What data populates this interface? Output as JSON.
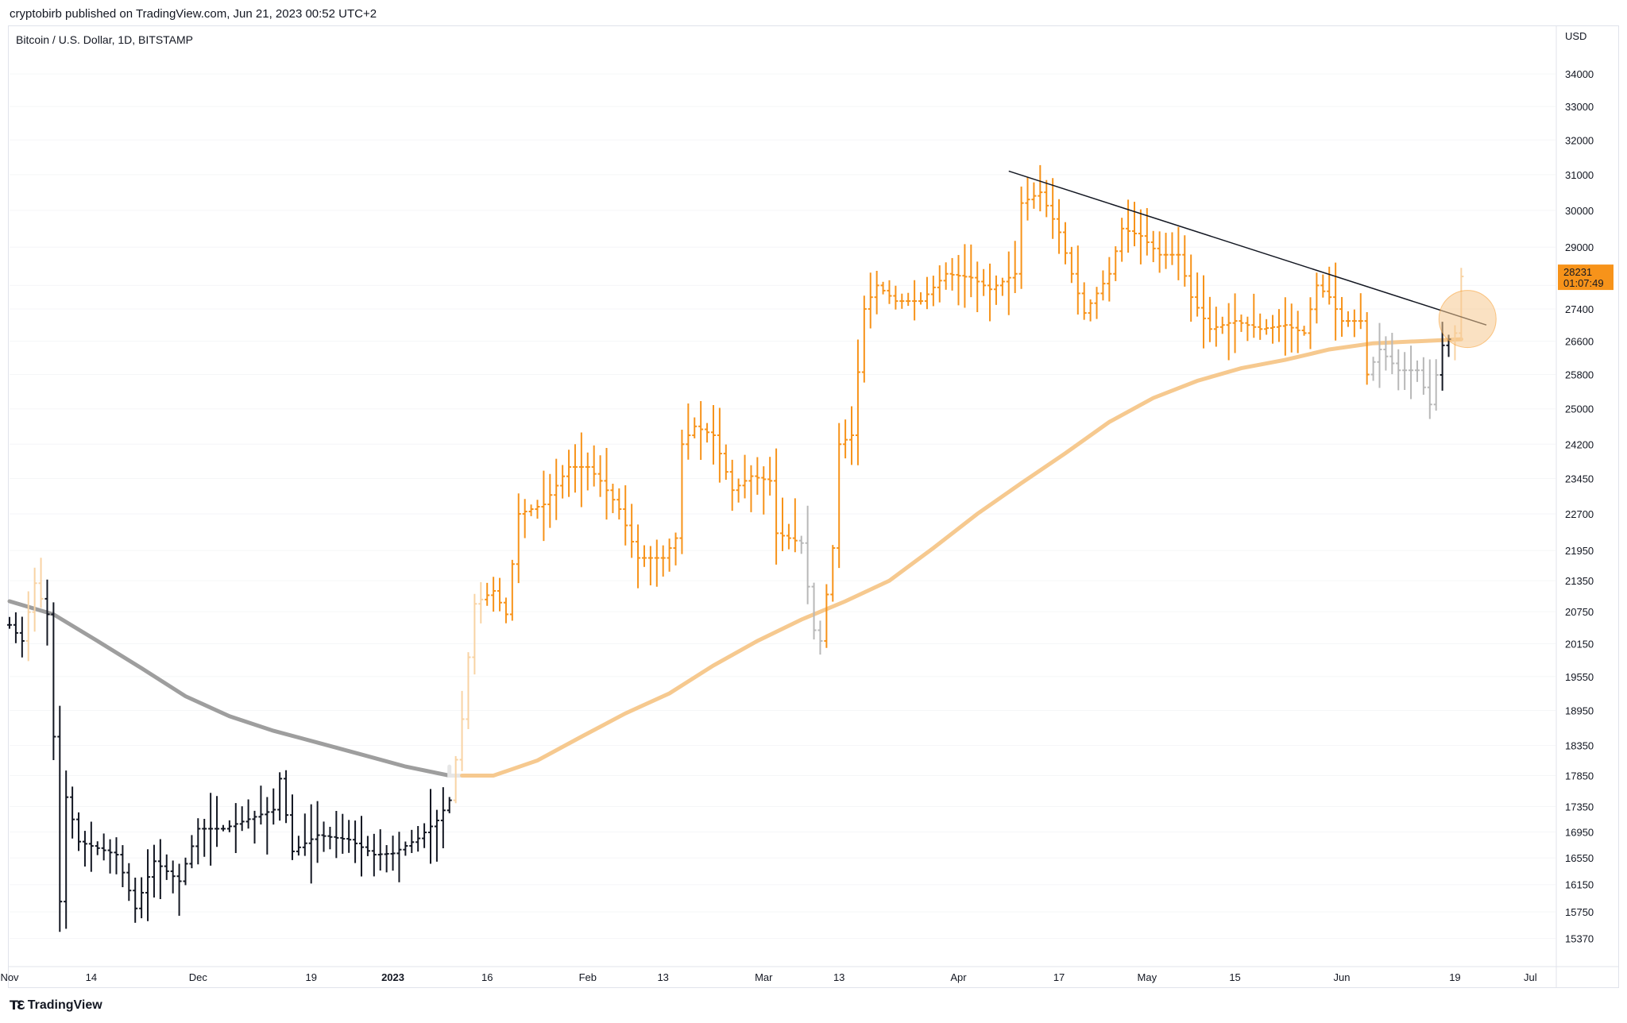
{
  "header": {
    "published_by": "cryptobirb published on TradingView.com, Jun 21, 2023 00:52 UTC+2"
  },
  "footer": {
    "logo_text": "TradingView",
    "logo_icon": "tradingview-logo-icon"
  },
  "colors": {
    "up_bar": "#f7931a",
    "down_bar_dark": "#131722",
    "faded_orange": "#f8d3a4",
    "faded_grey": "#b8b8b8",
    "ma_below": "#9e9e9e",
    "ma_above": "#f6c98f",
    "trendline": "#131722",
    "price_badge": "#f7931a",
    "highlight_circle": "#f6c98f"
  },
  "chart_data": {
    "type": "ohlc-bar",
    "title": "Bitcoin / U.S. Dollar, 1D, BITSTAMP",
    "currency_label": "USD",
    "y_scale": "log",
    "ylim": [
      15000,
      35500
    ],
    "y_ticks": [
      34000,
      33000,
      32000,
      31000,
      30000,
      29000,
      28000,
      27400,
      26600,
      25800,
      25000,
      24200,
      23450,
      22700,
      21950,
      21350,
      20750,
      20150,
      19550,
      18950,
      18350,
      17850,
      17350,
      16950,
      16550,
      16150,
      15750,
      15370
    ],
    "y_tick_labels": [
      "34000",
      "33000",
      "32000",
      "31000",
      "30000",
      "29000",
      "",
      "27400",
      "26600",
      "25800",
      "25000",
      "24200",
      "23450",
      "22700",
      "21950",
      "21350",
      "20750",
      "20150",
      "19550",
      "18950",
      "18350",
      "17850",
      "17350",
      "16950",
      "16550",
      "16150",
      "15750",
      "15370"
    ],
    "x_start": "2022-11-01",
    "x_end": "2023-07-05",
    "x_ticks": [
      {
        "date": "2022-11-01",
        "label": "Nov",
        "bold": false
      },
      {
        "date": "2022-11-14",
        "label": "14",
        "bold": false
      },
      {
        "date": "2022-12-01",
        "label": "Dec",
        "bold": false
      },
      {
        "date": "2022-12-19",
        "label": "19",
        "bold": false
      },
      {
        "date": "2023-01-01",
        "label": "2023",
        "bold": true
      },
      {
        "date": "2023-01-16",
        "label": "16",
        "bold": false
      },
      {
        "date": "2023-02-01",
        "label": "Feb",
        "bold": false
      },
      {
        "date": "2023-02-13",
        "label": "13",
        "bold": false
      },
      {
        "date": "2023-03-01",
        "label": "Mar",
        "bold": false
      },
      {
        "date": "2023-03-13",
        "label": "13",
        "bold": false
      },
      {
        "date": "2023-04-01",
        "label": "Apr",
        "bold": false
      },
      {
        "date": "2023-04-17",
        "label": "17",
        "bold": false
      },
      {
        "date": "2023-05-01",
        "label": "May",
        "bold": false
      },
      {
        "date": "2023-05-15",
        "label": "15",
        "bold": false
      },
      {
        "date": "2023-06-01",
        "label": "Jun",
        "bold": false
      },
      {
        "date": "2023-06-19",
        "label": "19",
        "bold": false
      },
      {
        "date": "2023-07-01",
        "label": "Jul",
        "bold": false
      }
    ],
    "close_path": [
      [
        "2022-11-01",
        20500
      ],
      [
        "2022-11-03",
        20200
      ],
      [
        "2022-11-05",
        21300
      ],
      [
        "2022-11-07",
        20700
      ],
      [
        "2022-11-08",
        18500
      ],
      [
        "2022-11-09",
        15900
      ],
      [
        "2022-11-10",
        17500
      ],
      [
        "2022-11-12",
        16800
      ],
      [
        "2022-11-15",
        16700
      ],
      [
        "2022-11-18",
        16600
      ],
      [
        "2022-11-21",
        15800
      ],
      [
        "2022-11-24",
        16500
      ],
      [
        "2022-11-28",
        16200
      ],
      [
        "2022-12-01",
        17000
      ],
      [
        "2022-12-05",
        17000
      ],
      [
        "2022-12-09",
        17150
      ],
      [
        "2022-12-13",
        17300
      ],
      [
        "2022-12-14",
        17800
      ],
      [
        "2022-12-16",
        16650
      ],
      [
        "2022-12-20",
        16900
      ],
      [
        "2022-12-25",
        16830
      ],
      [
        "2022-12-29",
        16600
      ],
      [
        "2023-01-01",
        16620
      ],
      [
        "2023-01-05",
        16850
      ],
      [
        "2023-01-08",
        17130
      ],
      [
        "2023-01-10",
        17450
      ],
      [
        "2023-01-12",
        18800
      ],
      [
        "2023-01-13",
        19900
      ],
      [
        "2023-01-14",
        20900
      ],
      [
        "2023-01-17",
        21150
      ],
      [
        "2023-01-19",
        20700
      ],
      [
        "2023-01-21",
        22700
      ],
      [
        "2023-01-25",
        22900
      ],
      [
        "2023-01-29",
        23700
      ],
      [
        "2023-02-01",
        23700
      ],
      [
        "2023-02-03",
        23400
      ],
      [
        "2023-02-06",
        22800
      ],
      [
        "2023-02-09",
        21800
      ],
      [
        "2023-02-13",
        21800
      ],
      [
        "2023-02-15",
        22200
      ],
      [
        "2023-02-16",
        24200
      ],
      [
        "2023-02-18",
        24600
      ],
      [
        "2023-02-21",
        24400
      ],
      [
        "2023-02-24",
        23200
      ],
      [
        "2023-02-27",
        23500
      ],
      [
        "2023-03-02",
        23400
      ],
      [
        "2023-03-03",
        22300
      ],
      [
        "2023-03-07",
        22100
      ],
      [
        "2023-03-09",
        20400
      ],
      [
        "2023-03-10",
        20200
      ],
      [
        "2023-03-12",
        22000
      ],
      [
        "2023-03-13",
        24200
      ],
      [
        "2023-03-15",
        24400
      ],
      [
        "2023-03-17",
        27400
      ],
      [
        "2023-03-19",
        28000
      ],
      [
        "2023-03-22",
        27600
      ],
      [
        "2023-03-26",
        27600
      ],
      [
        "2023-03-30",
        28300
      ],
      [
        "2023-04-03",
        28200
      ],
      [
        "2023-04-06",
        27900
      ],
      [
        "2023-04-10",
        28300
      ],
      [
        "2023-04-11",
        30200
      ],
      [
        "2023-04-14",
        30500
      ],
      [
        "2023-04-17",
        29400
      ],
      [
        "2023-04-19",
        28300
      ],
      [
        "2023-04-21",
        27300
      ],
      [
        "2023-04-25",
        28300
      ],
      [
        "2023-04-27",
        29500
      ],
      [
        "2023-04-30",
        29300
      ],
      [
        "2023-05-03",
        28800
      ],
      [
        "2023-05-06",
        28800
      ],
      [
        "2023-05-08",
        27700
      ],
      [
        "2023-05-11",
        26900
      ],
      [
        "2023-05-15",
        27100
      ],
      [
        "2023-05-19",
        26900
      ],
      [
        "2023-05-23",
        27000
      ],
      [
        "2023-05-26",
        26800
      ],
      [
        "2023-05-28",
        28000
      ],
      [
        "2023-05-30",
        27700
      ],
      [
        "2023-06-01",
        27100
      ],
      [
        "2023-06-04",
        27100
      ],
      [
        "2023-06-05",
        25800
      ],
      [
        "2023-06-07",
        26400
      ],
      [
        "2023-06-10",
        25900
      ],
      [
        "2023-06-13",
        25900
      ],
      [
        "2023-06-15",
        25100
      ],
      [
        "2023-06-17",
        26500
      ],
      [
        "2023-06-19",
        26800
      ],
      [
        "2023-06-20",
        28231
      ]
    ],
    "ma_path": [
      [
        "2022-11-01",
        20950
      ],
      [
        "2022-11-08",
        20700
      ],
      [
        "2022-11-15",
        20200
      ],
      [
        "2022-11-22",
        19700
      ],
      [
        "2022-11-29",
        19200
      ],
      [
        "2022-12-06",
        18850
      ],
      [
        "2022-12-13",
        18600
      ],
      [
        "2022-12-20",
        18400
      ],
      [
        "2022-12-27",
        18200
      ],
      [
        "2023-01-03",
        18000
      ],
      [
        "2023-01-10",
        17850
      ],
      [
        "2023-01-17",
        17850
      ],
      [
        "2023-01-24",
        18100
      ],
      [
        "2023-01-31",
        18500
      ],
      [
        "2023-02-07",
        18900
      ],
      [
        "2023-02-14",
        19250
      ],
      [
        "2023-02-21",
        19750
      ],
      [
        "2023-02-28",
        20200
      ],
      [
        "2023-03-07",
        20600
      ],
      [
        "2023-03-14",
        20950
      ],
      [
        "2023-03-21",
        21350
      ],
      [
        "2023-03-28",
        22000
      ],
      [
        "2023-04-04",
        22700
      ],
      [
        "2023-04-11",
        23350
      ],
      [
        "2023-04-18",
        24000
      ],
      [
        "2023-04-25",
        24700
      ],
      [
        "2023-05-02",
        25250
      ],
      [
        "2023-05-09",
        25650
      ],
      [
        "2023-05-16",
        25950
      ],
      [
        "2023-05-23",
        26150
      ],
      [
        "2023-05-30",
        26400
      ],
      [
        "2023-06-06",
        26550
      ],
      [
        "2023-06-13",
        26600
      ],
      [
        "2023-06-20",
        26650
      ]
    ],
    "ma_regime": [
      {
        "from": "2022-11-01",
        "to": "2023-01-10",
        "state": "below"
      },
      {
        "from": "2023-01-10",
        "to": "2023-01-12",
        "state": "transition"
      },
      {
        "from": "2023-01-12",
        "to": "2023-06-20",
        "state": "above"
      }
    ],
    "bar_regime": [
      {
        "from": "2022-11-01",
        "to": "2022-11-04",
        "style": "dark"
      },
      {
        "from": "2022-11-04",
        "to": "2022-11-07",
        "style": "faded_orange"
      },
      {
        "from": "2022-11-07",
        "to": "2023-01-11",
        "style": "dark"
      },
      {
        "from": "2023-01-11",
        "to": "2023-01-16",
        "style": "faded_orange"
      },
      {
        "from": "2023-01-16",
        "to": "2023-03-07",
        "style": "orange"
      },
      {
        "from": "2023-03-07",
        "to": "2023-03-11",
        "style": "faded_grey"
      },
      {
        "from": "2023-03-11",
        "to": "2023-06-06",
        "style": "orange"
      },
      {
        "from": "2023-06-06",
        "to": "2023-06-17",
        "style": "faded_grey"
      },
      {
        "from": "2023-06-17",
        "to": "2023-06-19",
        "style": "dark"
      },
      {
        "from": "2023-06-19",
        "to": "2023-06-21",
        "style": "faded_orange"
      }
    ],
    "trendline": {
      "start": [
        "2023-04-09",
        31100
      ],
      "end": [
        "2023-06-24",
        27000
      ]
    },
    "highlight_circle": {
      "date": "2023-06-21",
      "price": 27150
    },
    "last_price": {
      "value": "28231",
      "countdown": "01:07:49",
      "price": 28231
    }
  }
}
